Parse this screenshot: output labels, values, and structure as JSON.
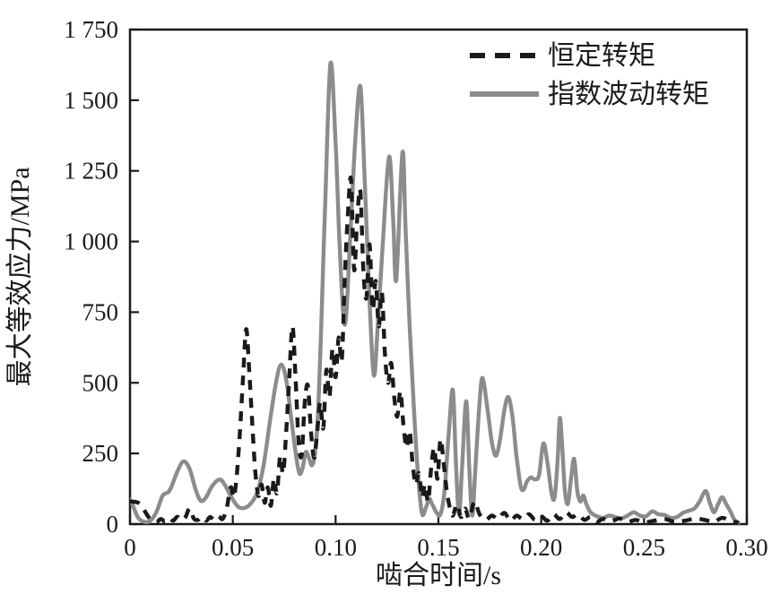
{
  "figure": {
    "background": "#ffffff",
    "axis_color": "#1a1a1a"
  },
  "chart_data": {
    "type": "line",
    "title": "",
    "xlabel": "啮合时间/s",
    "ylabel": "最大等效应力/MPa",
    "xlim": [
      0,
      0.3
    ],
    "ylim": [
      0,
      1750
    ],
    "grid": false,
    "legend_position": "top-right",
    "xticks": [
      0,
      0.05,
      0.1,
      0.15,
      0.2,
      0.25,
      0.3
    ],
    "xtick_labels": [
      "0",
      "0.05",
      "0.10",
      "0.15",
      "0.20",
      "0.25",
      "0.30"
    ],
    "yticks": [
      0,
      250,
      500,
      750,
      1000,
      1250,
      1500,
      1750
    ],
    "ytick_labels": [
      "0",
      "250",
      "500",
      "750",
      "1 000",
      "1 250",
      "1 500",
      "1 750"
    ],
    "series": [
      {
        "name": "恒定转矩",
        "line_style": "dashed",
        "color": "#1a1a1a",
        "points": [
          [
            0,
            80
          ],
          [
            0.003,
            78
          ],
          [
            0.005,
            70
          ],
          [
            0.007,
            48
          ],
          [
            0.009,
            25
          ],
          [
            0.011,
            12
          ],
          [
            0.013,
            8
          ],
          [
            0.015,
            18
          ],
          [
            0.017,
            10
          ],
          [
            0.019,
            22
          ],
          [
            0.021,
            12
          ],
          [
            0.023,
            26
          ],
          [
            0.025,
            14
          ],
          [
            0.027,
            25
          ],
          [
            0.029,
            55
          ],
          [
            0.031,
            20
          ],
          [
            0.033,
            15
          ],
          [
            0.035,
            25
          ],
          [
            0.037,
            12
          ],
          [
            0.039,
            25
          ],
          [
            0.041,
            15
          ],
          [
            0.043,
            28
          ],
          [
            0.045,
            18
          ],
          [
            0.047,
            55
          ],
          [
            0.049,
            130
          ],
          [
            0.0505,
            95
          ],
          [
            0.052,
            180
          ],
          [
            0.0535,
            330
          ],
          [
            0.055,
            520
          ],
          [
            0.0565,
            690
          ],
          [
            0.058,
            540
          ],
          [
            0.0595,
            350
          ],
          [
            0.061,
            180
          ],
          [
            0.0625,
            100
          ],
          [
            0.064,
            140
          ],
          [
            0.0655,
            75
          ],
          [
            0.067,
            130
          ],
          [
            0.0685,
            65
          ],
          [
            0.07,
            160
          ],
          [
            0.0715,
            110
          ],
          [
            0.073,
            240
          ],
          [
            0.0745,
            180
          ],
          [
            0.076,
            330
          ],
          [
            0.0775,
            520
          ],
          [
            0.079,
            700
          ],
          [
            0.0805,
            520
          ],
          [
            0.082,
            290
          ],
          [
            0.0835,
            245
          ],
          [
            0.085,
            430
          ],
          [
            0.0865,
            490
          ],
          [
            0.088,
            330
          ],
          [
            0.0895,
            235
          ],
          [
            0.091,
            320
          ],
          [
            0.0925,
            430
          ],
          [
            0.094,
            340
          ],
          [
            0.0955,
            545
          ],
          [
            0.097,
            450
          ],
          [
            0.0985,
            620
          ],
          [
            0.1,
            520
          ],
          [
            0.1015,
            660
          ],
          [
            0.103,
            580
          ],
          [
            0.1045,
            880
          ],
          [
            0.106,
            1100
          ],
          [
            0.1075,
            1220
          ],
          [
            0.109,
            900
          ],
          [
            0.1105,
            1080
          ],
          [
            0.112,
            1180
          ],
          [
            0.1135,
            900
          ],
          [
            0.115,
            800
          ],
          [
            0.1165,
            990
          ],
          [
            0.118,
            760
          ],
          [
            0.1195,
            860
          ],
          [
            0.121,
            700
          ],
          [
            0.1225,
            820
          ],
          [
            0.124,
            600
          ],
          [
            0.1255,
            500
          ],
          [
            0.127,
            570
          ],
          [
            0.1285,
            450
          ],
          [
            0.13,
            380
          ],
          [
            0.1315,
            470
          ],
          [
            0.133,
            350
          ],
          [
            0.1345,
            270
          ],
          [
            0.136,
            330
          ],
          [
            0.1375,
            210
          ],
          [
            0.139,
            140
          ],
          [
            0.1405,
            180
          ],
          [
            0.142,
            95
          ],
          [
            0.1435,
            140
          ],
          [
            0.145,
            80
          ],
          [
            0.1465,
            200
          ],
          [
            0.148,
            270
          ],
          [
            0.1495,
            160
          ],
          [
            0.151,
            300
          ],
          [
            0.1525,
            220
          ],
          [
            0.154,
            120
          ],
          [
            0.1555,
            60
          ],
          [
            0.157,
            30
          ],
          [
            0.159,
            70
          ],
          [
            0.161,
            25
          ],
          [
            0.163,
            55
          ],
          [
            0.165,
            20
          ],
          [
            0.1675,
            80
          ],
          [
            0.17,
            35
          ],
          [
            0.173,
            15
          ],
          [
            0.176,
            30
          ],
          [
            0.179,
            18
          ],
          [
            0.182,
            40
          ],
          [
            0.185,
            12
          ],
          [
            0.188,
            30
          ],
          [
            0.191,
            18
          ],
          [
            0.194,
            35
          ],
          [
            0.197,
            15
          ],
          [
            0.2,
            28
          ],
          [
            0.203,
            12
          ],
          [
            0.206,
            35
          ],
          [
            0.209,
            18
          ],
          [
            0.212,
            42
          ],
          [
            0.215,
            25
          ],
          [
            0.218,
            35
          ],
          [
            0.221,
            15
          ],
          [
            0.224,
            25
          ],
          [
            0.227,
            8
          ],
          [
            0.23,
            18
          ],
          [
            0.234,
            10
          ],
          [
            0.238,
            20
          ],
          [
            0.242,
            8
          ],
          [
            0.246,
            15
          ],
          [
            0.25,
            6
          ],
          [
            0.255,
            12
          ],
          [
            0.26,
            18
          ],
          [
            0.265,
            8
          ],
          [
            0.27,
            12
          ],
          [
            0.275,
            20
          ],
          [
            0.28,
            14
          ],
          [
            0.284,
            8
          ],
          [
            0.288,
            22
          ],
          [
            0.292,
            12
          ],
          [
            0.296,
            5
          ]
        ]
      },
      {
        "name": "指数波动转矩",
        "line_style": "solid",
        "color": "#8c8c8c",
        "points": [
          [
            0,
            88
          ],
          [
            0.002,
            55
          ],
          [
            0.004,
            22
          ],
          [
            0.007,
            8
          ],
          [
            0.01,
            12
          ],
          [
            0.013,
            45
          ],
          [
            0.0155,
            95
          ],
          [
            0.017,
            108
          ],
          [
            0.0185,
            112
          ],
          [
            0.02,
            130
          ],
          [
            0.023,
            185
          ],
          [
            0.026,
            222
          ],
          [
            0.029,
            195
          ],
          [
            0.032,
            120
          ],
          [
            0.0345,
            82
          ],
          [
            0.037,
            95
          ],
          [
            0.04,
            135
          ],
          [
            0.0435,
            158
          ],
          [
            0.046,
            140
          ],
          [
            0.049,
            100
          ],
          [
            0.0525,
            62
          ],
          [
            0.056,
            58
          ],
          [
            0.059,
            75
          ],
          [
            0.062,
            115
          ],
          [
            0.065,
            210
          ],
          [
            0.068,
            360
          ],
          [
            0.071,
            500
          ],
          [
            0.0735,
            565
          ],
          [
            0.076,
            510
          ],
          [
            0.0785,
            370
          ],
          [
            0.081,
            230
          ],
          [
            0.0825,
            178
          ],
          [
            0.084,
            200
          ],
          [
            0.0855,
            255
          ],
          [
            0.087,
            235
          ],
          [
            0.0885,
            208
          ],
          [
            0.09,
            250
          ],
          [
            0.0915,
            400
          ],
          [
            0.093,
            700
          ],
          [
            0.095,
            1150
          ],
          [
            0.0975,
            1630
          ],
          [
            0.1,
            1350
          ],
          [
            0.102,
            980
          ],
          [
            0.1045,
            705
          ],
          [
            0.107,
            1000
          ],
          [
            0.1095,
            1350
          ],
          [
            0.112,
            1550
          ],
          [
            0.114,
            1250
          ],
          [
            0.116,
            880
          ],
          [
            0.1185,
            530
          ],
          [
            0.1205,
            700
          ],
          [
            0.123,
            1000
          ],
          [
            0.126,
            1300
          ],
          [
            0.128,
            1080
          ],
          [
            0.1295,
            865
          ],
          [
            0.1325,
            1315
          ],
          [
            0.134,
            1050
          ],
          [
            0.136,
            700
          ],
          [
            0.138,
            420
          ],
          [
            0.14,
            180
          ],
          [
            0.142,
            38
          ],
          [
            0.144,
            60
          ],
          [
            0.1455,
            90
          ],
          [
            0.147,
            70
          ],
          [
            0.149,
            42
          ],
          [
            0.151,
            35
          ],
          [
            0.153,
            120
          ],
          [
            0.155,
            320
          ],
          [
            0.157,
            475
          ],
          [
            0.1585,
            220
          ],
          [
            0.16,
            35
          ],
          [
            0.1615,
            200
          ],
          [
            0.1635,
            435
          ],
          [
            0.165,
            200
          ],
          [
            0.1665,
            30
          ],
          [
            0.168,
            200
          ],
          [
            0.17,
            430
          ],
          [
            0.1715,
            517
          ],
          [
            0.174,
            400
          ],
          [
            0.176,
            290
          ],
          [
            0.178,
            242
          ],
          [
            0.18,
            300
          ],
          [
            0.182,
            400
          ],
          [
            0.184,
            450
          ],
          [
            0.186,
            380
          ],
          [
            0.188,
            240
          ],
          [
            0.19,
            135
          ],
          [
            0.1915,
            122
          ],
          [
            0.193,
            150
          ],
          [
            0.195,
            165
          ],
          [
            0.197,
            158
          ],
          [
            0.199,
            175
          ],
          [
            0.201,
            285
          ],
          [
            0.203,
            220
          ],
          [
            0.205,
            110
          ],
          [
            0.2065,
            95
          ],
          [
            0.208,
            230
          ],
          [
            0.209,
            374
          ],
          [
            0.21,
            300
          ],
          [
            0.2115,
            120
          ],
          [
            0.213,
            72
          ],
          [
            0.2145,
            160
          ],
          [
            0.216,
            231
          ],
          [
            0.2175,
            120
          ],
          [
            0.219,
            80
          ],
          [
            0.2205,
            101
          ],
          [
            0.222,
            70
          ],
          [
            0.224,
            42
          ],
          [
            0.227,
            28
          ],
          [
            0.23,
            22
          ],
          [
            0.233,
            30
          ],
          [
            0.236,
            25
          ],
          [
            0.239,
            20
          ],
          [
            0.242,
            30
          ],
          [
            0.245,
            42
          ],
          [
            0.248,
            30
          ],
          [
            0.251,
            28
          ],
          [
            0.254,
            45
          ],
          [
            0.257,
            35
          ],
          [
            0.26,
            32
          ],
          [
            0.263,
            22
          ],
          [
            0.266,
            25
          ],
          [
            0.269,
            40
          ],
          [
            0.272,
            48
          ],
          [
            0.2745,
            55
          ],
          [
            0.277,
            80
          ],
          [
            0.28,
            117
          ],
          [
            0.282,
            75
          ],
          [
            0.284,
            42
          ],
          [
            0.286,
            70
          ],
          [
            0.288,
            95
          ],
          [
            0.29,
            70
          ],
          [
            0.292,
            45
          ],
          [
            0.294,
            15
          ],
          [
            0.296,
            4
          ]
        ]
      }
    ]
  }
}
